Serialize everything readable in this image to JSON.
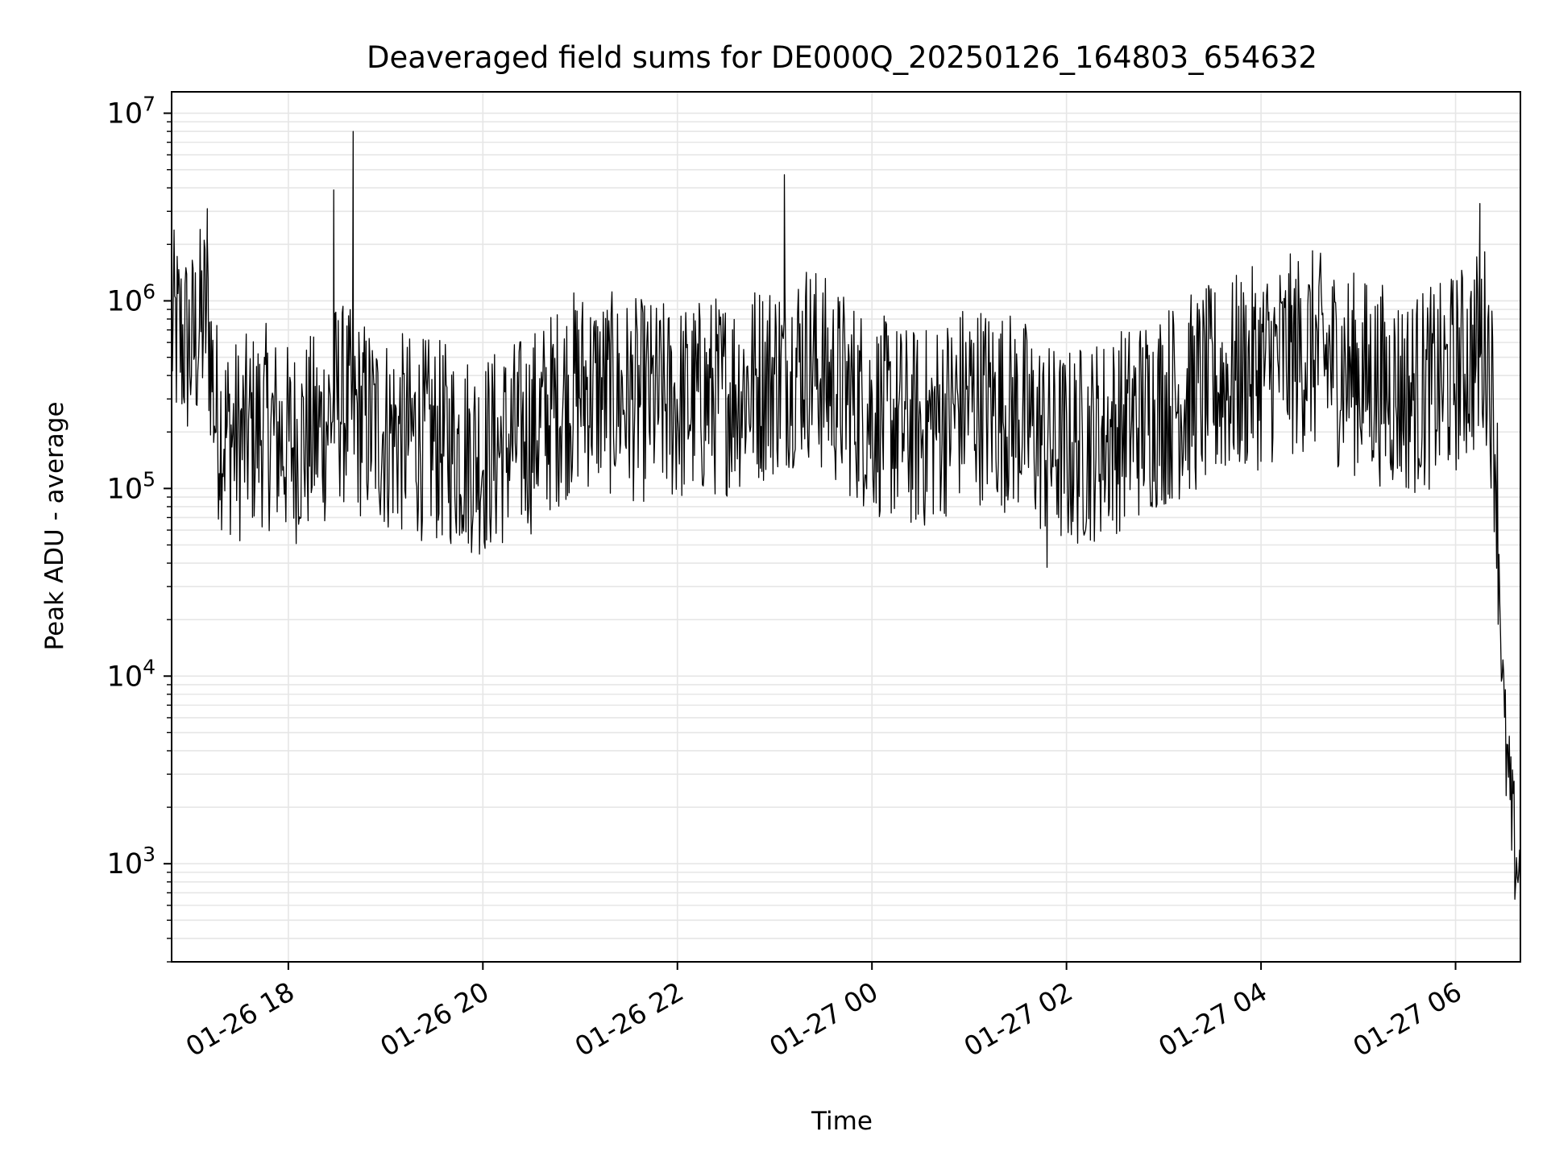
{
  "chart_data": {
    "type": "line",
    "title": "Deaveraged field sums for DE000Q_20250126_164803_654632",
    "xlabel": "Time",
    "ylabel": "Peak ADU - average",
    "yscale": "log",
    "ylim": [
      300,
      13000000
    ],
    "xlim": [
      "2025-01-26 16:48",
      "2025-01-27 06:40"
    ],
    "grid": true,
    "colors": {
      "line": "#000000",
      "grid": "#e6e6e6",
      "axes": "#000000"
    },
    "x_tick_labels": [
      "01-26 18",
      "01-26 20",
      "01-26 22",
      "01-27 00",
      "01-27 02",
      "01-27 04",
      "01-27 06"
    ],
    "y_tick_labels": [
      {
        "base": "10",
        "exp": "3"
      },
      {
        "base": "10",
        "exp": "4"
      },
      {
        "base": "10",
        "exp": "5"
      },
      {
        "base": "10",
        "exp": "6"
      },
      {
        "base": "10",
        "exp": "7"
      }
    ],
    "series": [
      {
        "color": "#000000",
        "x": [
          "2025-01-26 16:48",
          "2025-01-26 17:00",
          "2025-01-26 17:10",
          "2025-01-26 17:15",
          "2025-01-26 17:20",
          "2025-01-26 17:30",
          "2025-01-26 17:45",
          "2025-01-26 18:00",
          "2025-01-26 18:20",
          "2025-01-26 18:30",
          "2025-01-26 18:40",
          "2025-01-26 19:00",
          "2025-01-26 19:30",
          "2025-01-26 20:00",
          "2025-01-26 20:30",
          "2025-01-26 20:50",
          "2025-01-26 21:00",
          "2025-01-26 21:30",
          "2025-01-26 22:00",
          "2025-01-26 22:30",
          "2025-01-26 23:00",
          "2025-01-26 23:10",
          "2025-01-26 23:20",
          "2025-01-26 23:30",
          "2025-01-27 00:00",
          "2025-01-27 00:30",
          "2025-01-27 01:00",
          "2025-01-27 01:30",
          "2025-01-27 01:50",
          "2025-01-27 02:00",
          "2025-01-27 02:30",
          "2025-01-27 03:00",
          "2025-01-27 03:30",
          "2025-01-27 04:00",
          "2025-01-27 04:30",
          "2025-01-27 05:00",
          "2025-01-27 05:30",
          "2025-01-27 05:50",
          "2025-01-27 06:10",
          "2025-01-27 06:20",
          "2025-01-27 06:25",
          "2025-01-27 06:30",
          "2025-01-27 06:35",
          "2025-01-27 06:40"
        ],
        "y": [
          700000,
          550000,
          900000,
          250000,
          200000,
          180000,
          220000,
          170000,
          200000,
          300000,
          250000,
          200000,
          180000,
          150000,
          200000,
          300000,
          350000,
          300000,
          280000,
          320000,
          400000,
          450000,
          500000,
          400000,
          250000,
          200000,
          300000,
          250000,
          170000,
          160000,
          200000,
          280000,
          350000,
          450000,
          550000,
          400000,
          320000,
          350000,
          500000,
          600000,
          150000,
          5000,
          1500,
          800
        ],
        "spikes": [
          {
            "x": "2025-01-26 17:10",
            "y": 3100000
          },
          {
            "x": "2025-01-26 18:28",
            "y": 3900000
          },
          {
            "x": "2025-01-26 18:40",
            "y": 8000000
          },
          {
            "x": "2025-01-26 23:06",
            "y": 4700000
          },
          {
            "x": "2025-01-27 06:15",
            "y": 3300000
          }
        ],
        "dips": [
          {
            "x": "2025-01-27 01:48",
            "y": 38000
          }
        ]
      }
    ]
  }
}
